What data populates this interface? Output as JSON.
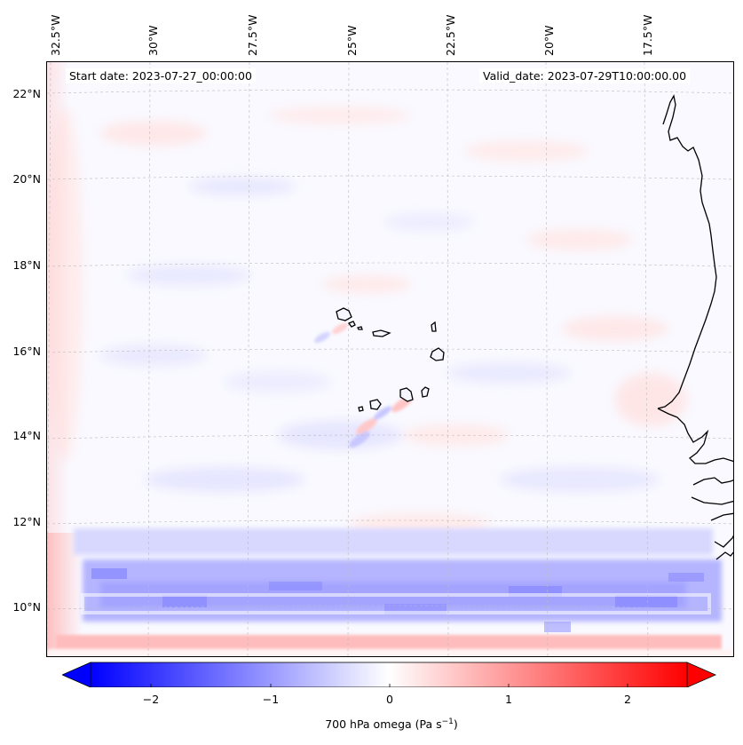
{
  "map": {
    "start_date_label": "Start date: 2023-07-27_00:00:00",
    "valid_date_label": "Valid_date: 2023-07-29T10:00:00.00",
    "lon_labels": [
      "32.5°W",
      "30°W",
      "27.5°W",
      "25°W",
      "22.5°W",
      "20°W",
      "17.5°W"
    ],
    "lat_labels": [
      "22°N",
      "20°N",
      "18°N",
      "16°N",
      "14°N",
      "12°N",
      "10°N"
    ]
  },
  "colorbar": {
    "ticks": [
      "−2",
      "−1",
      "0",
      "1",
      "2"
    ],
    "label_prefix": "700 hPa omega (Pa s",
    "label_exp": "−1",
    "label_suffix": ")",
    "min_color": "#0000ff",
    "mid_color": "#ffffff",
    "max_color": "#ff0000"
  }
}
